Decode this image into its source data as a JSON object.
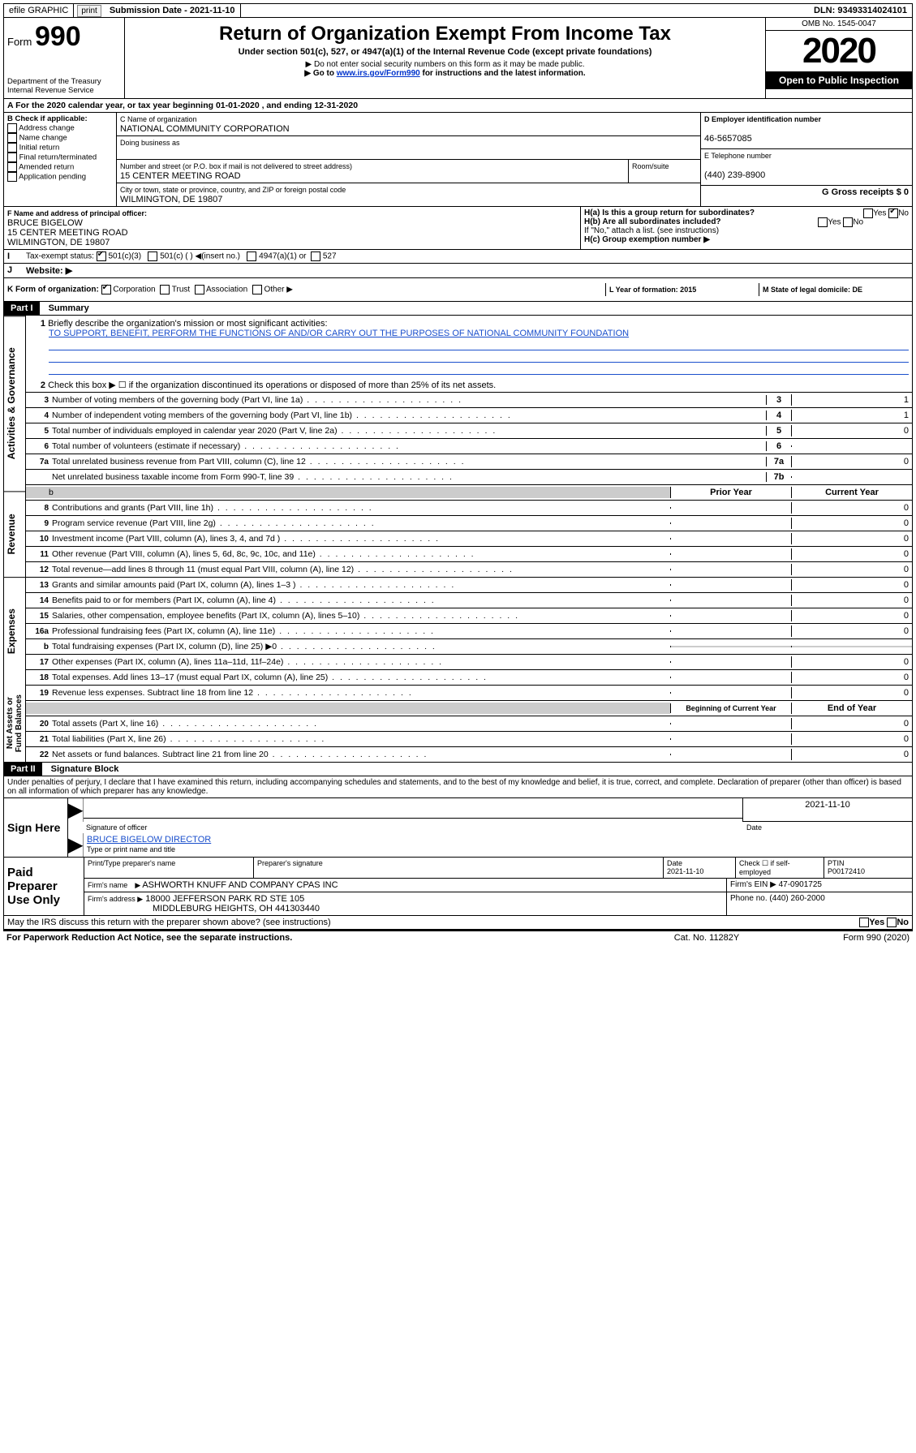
{
  "topbar": {
    "efile": "efile GRAPHIC",
    "print": "print",
    "subdate_label": "Submission Date - 2021-11-10",
    "dln": "DLN: 93493314024101"
  },
  "header": {
    "form_prefix": "Form",
    "form_number": "990",
    "dept1": "Department of the Treasury",
    "dept2": "Internal Revenue Service",
    "title": "Return of Organization Exempt From Income Tax",
    "subtitle": "Under section 501(c), 527, or 4947(a)(1) of the Internal Revenue Code (except private foundations)",
    "note1": "▶ Do not enter social security numbers on this form as it may be made public.",
    "note2_pre": "▶ Go to ",
    "note2_link": "www.irs.gov/Form990",
    "note2_post": " for instructions and the latest information.",
    "omb": "OMB No. 1545-0047",
    "year": "2020",
    "open": "Open to Public Inspection"
  },
  "sectionA": {
    "a_line": "A For the 2020 calendar year, or tax year beginning 01-01-2020    , and ending 12-31-2020",
    "b_label": "B Check if applicable:",
    "b_opts": [
      "Address change",
      "Name change",
      "Initial return",
      "Final return/terminated",
      "Amended return",
      "Application pending"
    ],
    "c_label": "C Name of organization",
    "c_val": "NATIONAL COMMUNITY CORPORATION",
    "dba": "Doing business as",
    "addr_label": "Number and street (or P.O. box if mail is not delivered to street address)",
    "addr_val": "15 CENTER MEETING ROAD",
    "room": "Room/suite",
    "city_label": "City or town, state or province, country, and ZIP or foreign postal code",
    "city_val": "WILMINGTON, DE  19807",
    "d_label": "D Employer identification number",
    "d_val": "46-5657085",
    "e_label": "E Telephone number",
    "e_val": "(440) 239-8900",
    "g_label": "G Gross receipts $ 0",
    "f_label": "F  Name and address of principal officer:",
    "f_name": "BRUCE BIGELOW",
    "f_addr1": "15 CENTER MEETING ROAD",
    "f_addr2": "WILMINGTON, DE  19807",
    "ha": "H(a)  Is this a group return for subordinates?",
    "hb": "H(b)  Are all subordinates included?",
    "hb_note": "If \"No,\" attach a list. (see instructions)",
    "hc": "H(c)  Group exemption number ▶",
    "yes": "Yes",
    "no": "No",
    "i_label": "Tax-exempt status:",
    "i_501c3": "501(c)(3)",
    "i_501c": "501(c) (  ) ◀(insert no.)",
    "i_4947": "4947(a)(1) or",
    "i_527": "527",
    "j_label": "Website: ▶",
    "k_label": "K Form of organization:",
    "k_corp": "Corporation",
    "k_trust": "Trust",
    "k_assoc": "Association",
    "k_other": "Other ▶",
    "l_label": "L Year of formation: 2015",
    "m_label": "M State of legal domicile: DE"
  },
  "part1": {
    "header": "Part I",
    "title": "Summary",
    "line1_label": "Briefly describe the organization's mission or most significant activities:",
    "line1_val": "TO SUPPORT, BENEFIT, PERFORM THE FUNCTIONS OF AND/OR CARRY OUT THE PURPOSES OF NATIONAL COMMUNITY FOUNDATION",
    "line2": "Check this box ▶ ☐ if the organization discontinued its operations or disposed of more than 25% of its net assets.",
    "groups": {
      "gov": "Activities & Governance",
      "rev": "Revenue",
      "exp": "Expenses",
      "net": "Net Assets or Fund Balances"
    },
    "small_rows": [
      {
        "n": "3",
        "label": "Number of voting members of the governing body (Part VI, line 1a)",
        "box": "3",
        "val": "1"
      },
      {
        "n": "4",
        "label": "Number of independent voting members of the governing body (Part VI, line 1b)",
        "box": "4",
        "val": "1"
      },
      {
        "n": "5",
        "label": "Total number of individuals employed in calendar year 2020 (Part V, line 2a)",
        "box": "5",
        "val": "0"
      },
      {
        "n": "6",
        "label": "Total number of volunteers (estimate if necessary)",
        "box": "6",
        "val": ""
      },
      {
        "n": "7a",
        "label": "Total unrelated business revenue from Part VIII, column (C), line 12",
        "box": "7a",
        "val": "0"
      },
      {
        "n": "",
        "label": "Net unrelated business taxable income from Form 990-T, line 39",
        "box": "7b",
        "val": ""
      }
    ],
    "col_headers": {
      "prior": "Prior Year",
      "current": "Current Year"
    },
    "wide_rows": [
      {
        "n": "8",
        "label": "Contributions and grants (Part VIII, line 1h)",
        "p": "",
        "c": "0"
      },
      {
        "n": "9",
        "label": "Program service revenue (Part VIII, line 2g)",
        "p": "",
        "c": "0"
      },
      {
        "n": "10",
        "label": "Investment income (Part VIII, column (A), lines 3, 4, and 7d )",
        "p": "",
        "c": "0"
      },
      {
        "n": "11",
        "label": "Other revenue (Part VIII, column (A), lines 5, 6d, 8c, 9c, 10c, and 11e)",
        "p": "",
        "c": "0"
      },
      {
        "n": "12",
        "label": "Total revenue—add lines 8 through 11 (must equal Part VIII, column (A), line 12)",
        "p": "",
        "c": "0"
      },
      {
        "n": "13",
        "label": "Grants and similar amounts paid (Part IX, column (A), lines 1–3 )",
        "p": "",
        "c": "0"
      },
      {
        "n": "14",
        "label": "Benefits paid to or for members (Part IX, column (A), line 4)",
        "p": "",
        "c": "0"
      },
      {
        "n": "15",
        "label": "Salaries, other compensation, employee benefits (Part IX, column (A), lines 5–10)",
        "p": "",
        "c": "0"
      },
      {
        "n": "16a",
        "label": "Professional fundraising fees (Part IX, column (A), line 11e)",
        "p": "",
        "c": "0"
      },
      {
        "n": "b",
        "label": "Total fundraising expenses (Part IX, column (D), line 25) ▶0",
        "p": "GRAY",
        "c": "GRAY"
      },
      {
        "n": "17",
        "label": "Other expenses (Part IX, column (A), lines 11a–11d, 11f–24e)",
        "p": "",
        "c": "0"
      },
      {
        "n": "18",
        "label": "Total expenses. Add lines 13–17 (must equal Part IX, column (A), line 25)",
        "p": "",
        "c": "0"
      },
      {
        "n": "19",
        "label": "Revenue less expenses. Subtract line 18 from line 12",
        "p": "",
        "c": "0"
      }
    ],
    "net_headers": {
      "beg": "Beginning of Current Year",
      "end": "End of Year"
    },
    "net_rows": [
      {
        "n": "20",
        "label": "Total assets (Part X, line 16)",
        "p": "",
        "c": "0"
      },
      {
        "n": "21",
        "label": "Total liabilities (Part X, line 26)",
        "p": "",
        "c": "0"
      },
      {
        "n": "22",
        "label": "Net assets or fund balances. Subtract line 21 from line 20",
        "p": "",
        "c": "0"
      }
    ]
  },
  "part2": {
    "header": "Part II",
    "title": "Signature Block",
    "perjury": "Under penalties of perjury, I declare that I have examined this return, including accompanying schedules and statements, and to the best of my knowledge and belief, it is true, correct, and complete. Declaration of preparer (other than officer) is based on all information of which preparer has any knowledge.",
    "sign_here": "Sign Here",
    "sig_officer": "Signature of officer",
    "sig_date": "2021-11-10",
    "date_label": "Date",
    "officer_name": "BRUCE BIGELOW  DIRECTOR",
    "type_name": "Type or print name and title",
    "paid": "Paid Preparer Use Only",
    "prep_name_label": "Print/Type preparer's name",
    "prep_sig_label": "Preparer's signature",
    "prep_date": "2021-11-10",
    "check_se": "Check ☐ if self-employed",
    "ptin_label": "PTIN",
    "ptin": "P00172410",
    "firm_name_label": "Firm's name",
    "firm_name": "ASHWORTH KNUFF AND COMPANY CPAS INC",
    "firm_ein_label": "Firm's EIN ▶ 47-0901725",
    "firm_addr_label": "Firm's address ▶",
    "firm_addr1": "18000 JEFFERSON PARK RD STE 105",
    "firm_addr2": "MIDDLEBURG HEIGHTS, OH  441303440",
    "phone_label": "Phone no. (440) 260-2000",
    "discuss": "May the IRS discuss this return with the preparer shown above? (see instructions)",
    "paperwork": "For Paperwork Reduction Act Notice, see the separate instructions.",
    "cat": "Cat. No. 11282Y",
    "form_foot": "Form 990 (2020)"
  }
}
